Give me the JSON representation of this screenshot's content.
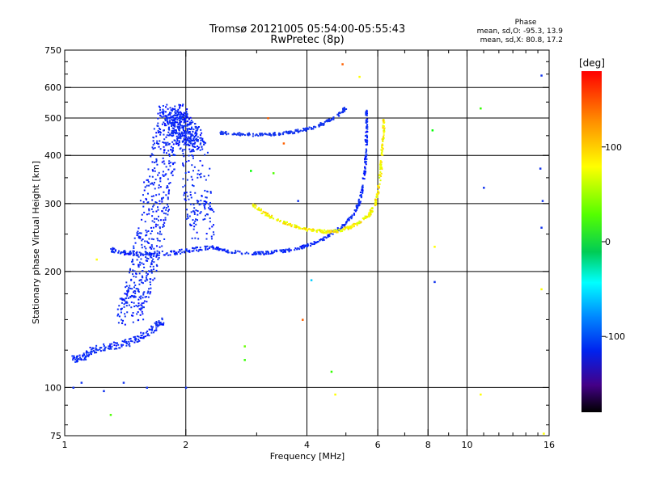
{
  "chart_data": {
    "type": "scatter",
    "title": "Tromsø 20121005 05:54:00-05:55:43",
    "subtitle": "RwPretec (8p)",
    "xlabel": "Frequency [MHz]",
    "ylabel": "Stationary phase Virtual Height [km]",
    "x_scale": "log",
    "y_scale": "log",
    "xlim": [
      1,
      16
    ],
    "ylim": [
      75,
      750
    ],
    "x_ticks": [
      "1",
      "2",
      "4",
      "6",
      "8",
      "10",
      "16"
    ],
    "x_tick_values": [
      1,
      2,
      4,
      6,
      8,
      10,
      16
    ],
    "y_ticks": [
      "75",
      "100",
      "200",
      "300",
      "400",
      "500",
      "600",
      "750"
    ],
    "y_tick_values": [
      75,
      100,
      200,
      300,
      400,
      500,
      600,
      750
    ],
    "grid_x": [
      2,
      4,
      6,
      8,
      10
    ],
    "grid_y": [
      100,
      200,
      300,
      400,
      500,
      600
    ],
    "phase_stats": {
      "title": "Phase",
      "line_o": "mean, sd,O: -95.3, 13.9",
      "line_x": "mean, sd,X:  80.8, 17.2"
    },
    "colorbar": {
      "label": "[deg]",
      "ticks": [
        "100",
        "0",
        "-100"
      ],
      "tick_values": [
        100,
        0,
        -100
      ],
      "range": [
        -180,
        180
      ]
    },
    "traces": [
      {
        "name": "",
        "phase": -100,
        "width_ratio": 0.05,
        "points": [
          [
            1.05,
            118
          ],
          [
            1.1,
            120
          ],
          [
            1.15,
            123
          ],
          [
            1.2,
            126
          ],
          [
            1.3,
            128
          ],
          [
            1.4,
            130
          ],
          [
            1.5,
            133
          ],
          [
            1.6,
            138
          ],
          [
            1.7,
            145
          ],
          [
            1.75,
            150
          ]
        ]
      },
      {
        "name": "",
        "phase": -100,
        "width_ratio": 0.1,
        "points": [
          [
            1.45,
            150
          ],
          [
            1.5,
            170
          ],
          [
            1.55,
            190
          ],
          [
            1.6,
            220
          ],
          [
            1.65,
            260
          ],
          [
            1.7,
            320
          ],
          [
            1.75,
            390
          ],
          [
            1.8,
            460
          ],
          [
            1.85,
            520
          ],
          [
            1.9,
            500
          ],
          [
            1.95,
            480
          ],
          [
            2.0,
            460
          ],
          [
            2.05,
            440
          ],
          [
            2.1,
            420
          ],
          [
            2.15,
            300
          ],
          [
            2.2,
            250
          ]
        ]
      },
      {
        "name": "",
        "phase": -100,
        "width_ratio": 0.03,
        "points": [
          [
            1.3,
            228
          ],
          [
            1.4,
            224
          ],
          [
            1.5,
            222
          ],
          [
            1.7,
            222
          ],
          [
            1.9,
            224
          ],
          [
            2.1,
            228
          ],
          [
            2.3,
            230
          ]
        ]
      },
      {
        "name": "",
        "phase": -100,
        "width_ratio": 0.02,
        "points": [
          [
            2.3,
            232
          ],
          [
            2.5,
            226
          ],
          [
            2.8,
            223
          ],
          [
            3.1,
            223
          ],
          [
            3.4,
            225
          ],
          [
            3.7,
            228
          ],
          [
            4.0,
            233
          ],
          [
            4.3,
            240
          ],
          [
            4.6,
            250
          ],
          [
            4.9,
            262
          ],
          [
            5.2,
            280
          ],
          [
            5.4,
            300
          ],
          [
            5.5,
            330
          ],
          [
            5.6,
            380
          ],
          [
            5.62,
            430
          ],
          [
            5.63,
            480
          ],
          [
            5.62,
            520
          ]
        ]
      },
      {
        "name": "",
        "phase": -120,
        "width_ratio": 0.02,
        "points": [
          [
            2.4,
            458
          ],
          [
            2.7,
            454
          ],
          [
            3.0,
            452
          ],
          [
            3.3,
            454
          ],
          [
            3.6,
            458
          ],
          [
            3.9,
            465
          ],
          [
            4.2,
            475
          ],
          [
            4.5,
            490
          ],
          [
            4.8,
            510
          ],
          [
            5.0,
            530
          ]
        ]
      },
      {
        "name": "",
        "phase": 100,
        "width_ratio": 0.02,
        "points": [
          [
            2.9,
            300
          ],
          [
            3.1,
            285
          ],
          [
            3.3,
            275
          ],
          [
            3.6,
            265
          ],
          [
            3.9,
            258
          ],
          [
            4.2,
            255
          ],
          [
            4.5,
            253
          ],
          [
            4.8,
            255
          ],
          [
            5.1,
            260
          ],
          [
            5.4,
            268
          ],
          [
            5.7,
            280
          ],
          [
            5.9,
            295
          ],
          [
            6.0,
            320
          ],
          [
            6.1,
            360
          ],
          [
            6.15,
            410
          ],
          [
            6.2,
            460
          ],
          [
            6.22,
            500
          ]
        ]
      }
    ],
    "isolated_points": [
      {
        "x": 4.9,
        "y": 690,
        "phase": 150
      },
      {
        "x": 5.4,
        "y": 640,
        "phase": 100
      },
      {
        "x": 3.5,
        "y": 430,
        "phase": 150
      },
      {
        "x": 3.2,
        "y": 500,
        "phase": 150
      },
      {
        "x": 2.9,
        "y": 365,
        "phase": 0
      },
      {
        "x": 3.3,
        "y": 360,
        "phase": 30
      },
      {
        "x": 3.8,
        "y": 305,
        "phase": -100
      },
      {
        "x": 4.1,
        "y": 190,
        "phase": -20
      },
      {
        "x": 3.9,
        "y": 150,
        "phase": 150
      },
      {
        "x": 2.8,
        "y": 128,
        "phase": 40
      },
      {
        "x": 2.8,
        "y": 118,
        "phase": 20
      },
      {
        "x": 4.6,
        "y": 110,
        "phase": 20
      },
      {
        "x": 4.7,
        "y": 96,
        "phase": 100
      },
      {
        "x": 8.2,
        "y": 465,
        "phase": 0
      },
      {
        "x": 8.3,
        "y": 232,
        "phase": 100
      },
      {
        "x": 8.3,
        "y": 188,
        "phase": -100
      },
      {
        "x": 10.8,
        "y": 530,
        "phase": 20
      },
      {
        "x": 11.0,
        "y": 330,
        "phase": -100
      },
      {
        "x": 10.8,
        "y": 96,
        "phase": 100
      },
      {
        "x": 15.3,
        "y": 645,
        "phase": -100
      },
      {
        "x": 15.2,
        "y": 370,
        "phase": -100
      },
      {
        "x": 15.4,
        "y": 305,
        "phase": -100
      },
      {
        "x": 15.3,
        "y": 260,
        "phase": -100
      },
      {
        "x": 15.3,
        "y": 180,
        "phase": 100
      },
      {
        "x": 15.5,
        "y": 76,
        "phase": 100
      },
      {
        "x": 1.3,
        "y": 85,
        "phase": 30
      },
      {
        "x": 1.2,
        "y": 215,
        "phase": 100
      },
      {
        "x": 1.05,
        "y": 100,
        "phase": -100
      },
      {
        "x": 1.1,
        "y": 103,
        "phase": -100
      },
      {
        "x": 1.25,
        "y": 98,
        "phase": -100
      },
      {
        "x": 1.4,
        "y": 103,
        "phase": -100
      },
      {
        "x": 1.6,
        "y": 100,
        "phase": -100
      },
      {
        "x": 2.0,
        "y": 100,
        "phase": -100
      }
    ]
  }
}
